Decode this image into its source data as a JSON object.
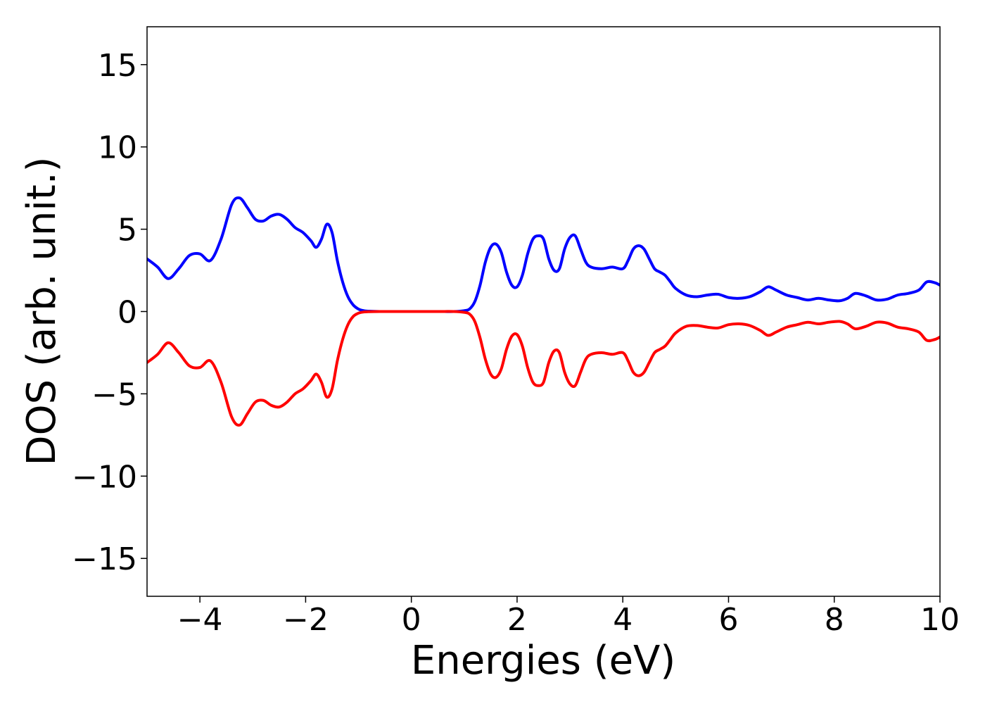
{
  "chart_data": {
    "type": "line",
    "title": "",
    "xlabel": "Energies (eV)",
    "ylabel": "DOS (arb. unit.)",
    "xlim": [
      -5,
      10
    ],
    "ylim": [
      -17.3,
      17.3
    ],
    "xticks": [
      -4,
      -2,
      0,
      2,
      4,
      6,
      8,
      10
    ],
    "xtick_labels": [
      "−4",
      "−2",
      "0",
      "2",
      "4",
      "6",
      "8",
      "10"
    ],
    "yticks": [
      -15,
      -10,
      -5,
      0,
      5,
      10,
      15
    ],
    "ytick_labels": [
      "−15",
      "−10",
      "−5",
      "0",
      "5",
      "10",
      "15"
    ],
    "grid": false,
    "series": [
      {
        "color": "#0000ff",
        "x": [
          -5.0,
          -4.8,
          -4.6,
          -4.4,
          -4.2,
          -4.0,
          -3.8,
          -3.6,
          -3.4,
          -3.25,
          -3.1,
          -2.95,
          -2.8,
          -2.65,
          -2.5,
          -2.35,
          -2.2,
          -2.05,
          -1.9,
          -1.8,
          -1.7,
          -1.6,
          -1.5,
          -1.4,
          -1.3,
          -1.2,
          -1.1,
          -1.0,
          -0.9,
          -0.8,
          -0.6,
          -0.4,
          0.0,
          0.5,
          0.8,
          1.0,
          1.1,
          1.2,
          1.3,
          1.4,
          1.5,
          1.6,
          1.7,
          1.8,
          1.9,
          2.0,
          2.1,
          2.2,
          2.3,
          2.4,
          2.5,
          2.6,
          2.7,
          2.8,
          2.9,
          3.0,
          3.1,
          3.2,
          3.3,
          3.4,
          3.6,
          3.8,
          4.0,
          4.1,
          4.2,
          4.3,
          4.4,
          4.5,
          4.6,
          4.7,
          4.8,
          4.9,
          5.0,
          5.2,
          5.4,
          5.6,
          5.8,
          6.0,
          6.2,
          6.4,
          6.6,
          6.75,
          6.9,
          7.1,
          7.3,
          7.5,
          7.7,
          7.9,
          8.1,
          8.25,
          8.4,
          8.6,
          8.8,
          9.0,
          9.2,
          9.4,
          9.6,
          9.75,
          9.9,
          10.0
        ],
        "y": [
          3.2,
          2.7,
          2.0,
          2.6,
          3.4,
          3.5,
          3.1,
          4.4,
          6.5,
          6.9,
          6.3,
          5.6,
          5.5,
          5.8,
          5.9,
          5.6,
          5.1,
          4.8,
          4.3,
          3.9,
          4.4,
          5.3,
          4.8,
          3.1,
          1.8,
          0.9,
          0.4,
          0.15,
          0.05,
          0.02,
          0.0,
          0.0,
          0.0,
          0.0,
          0.0,
          0.05,
          0.15,
          0.6,
          1.6,
          3.0,
          3.9,
          4.1,
          3.6,
          2.4,
          1.6,
          1.5,
          2.2,
          3.5,
          4.4,
          4.6,
          4.4,
          3.2,
          2.5,
          2.6,
          3.8,
          4.5,
          4.6,
          3.8,
          3.0,
          2.7,
          2.6,
          2.7,
          2.6,
          3.1,
          3.8,
          4.0,
          3.8,
          3.2,
          2.6,
          2.4,
          2.2,
          1.8,
          1.4,
          1.0,
          0.9,
          1.0,
          1.05,
          0.85,
          0.8,
          0.9,
          1.2,
          1.5,
          1.3,
          1.0,
          0.85,
          0.7,
          0.8,
          0.7,
          0.65,
          0.8,
          1.1,
          0.95,
          0.7,
          0.75,
          1.0,
          1.1,
          1.3,
          1.8,
          1.75,
          1.6
        ]
      },
      {
        "color": "#ff0000",
        "x": [
          -5.0,
          -4.8,
          -4.6,
          -4.4,
          -4.2,
          -4.0,
          -3.8,
          -3.6,
          -3.4,
          -3.25,
          -3.1,
          -2.95,
          -2.8,
          -2.65,
          -2.5,
          -2.35,
          -2.2,
          -2.05,
          -1.9,
          -1.8,
          -1.7,
          -1.6,
          -1.5,
          -1.4,
          -1.3,
          -1.2,
          -1.1,
          -1.0,
          -0.9,
          -0.8,
          -0.6,
          -0.4,
          0.0,
          0.5,
          0.8,
          1.0,
          1.1,
          1.2,
          1.3,
          1.4,
          1.5,
          1.6,
          1.7,
          1.8,
          1.9,
          2.0,
          2.1,
          2.2,
          2.3,
          2.4,
          2.5,
          2.6,
          2.7,
          2.8,
          2.9,
          3.0,
          3.1,
          3.2,
          3.3,
          3.4,
          3.6,
          3.8,
          4.0,
          4.1,
          4.2,
          4.3,
          4.4,
          4.5,
          4.6,
          4.7,
          4.8,
          4.9,
          5.0,
          5.2,
          5.4,
          5.6,
          5.8,
          6.0,
          6.2,
          6.4,
          6.6,
          6.75,
          6.9,
          7.1,
          7.3,
          7.5,
          7.7,
          7.9,
          8.1,
          8.25,
          8.4,
          8.6,
          8.8,
          9.0,
          9.2,
          9.4,
          9.6,
          9.75,
          9.9,
          10.0
        ],
        "y": [
          -3.1,
          -2.6,
          -1.9,
          -2.5,
          -3.3,
          -3.4,
          -3.0,
          -4.3,
          -6.4,
          -6.9,
          -6.2,
          -5.5,
          -5.4,
          -5.7,
          -5.8,
          -5.5,
          -5.0,
          -4.7,
          -4.2,
          -3.8,
          -4.3,
          -5.2,
          -4.7,
          -3.0,
          -1.7,
          -0.8,
          -0.3,
          -0.1,
          -0.03,
          -0.01,
          0.0,
          0.0,
          0.0,
          0.0,
          0.0,
          -0.05,
          -0.15,
          -0.6,
          -1.6,
          -2.9,
          -3.8,
          -4.0,
          -3.5,
          -2.3,
          -1.5,
          -1.4,
          -2.1,
          -3.4,
          -4.3,
          -4.5,
          -4.3,
          -3.1,
          -2.4,
          -2.5,
          -3.7,
          -4.4,
          -4.5,
          -3.7,
          -2.9,
          -2.6,
          -2.5,
          -2.6,
          -2.5,
          -3.0,
          -3.7,
          -3.9,
          -3.7,
          -3.1,
          -2.5,
          -2.3,
          -2.1,
          -1.7,
          -1.3,
          -0.9,
          -0.85,
          -0.95,
          -1.0,
          -0.8,
          -0.75,
          -0.85,
          -1.15,
          -1.45,
          -1.25,
          -0.95,
          -0.8,
          -0.65,
          -0.75,
          -0.65,
          -0.6,
          -0.75,
          -1.05,
          -0.9,
          -0.65,
          -0.7,
          -0.95,
          -1.05,
          -1.25,
          -1.75,
          -1.7,
          -1.55
        ]
      }
    ]
  }
}
